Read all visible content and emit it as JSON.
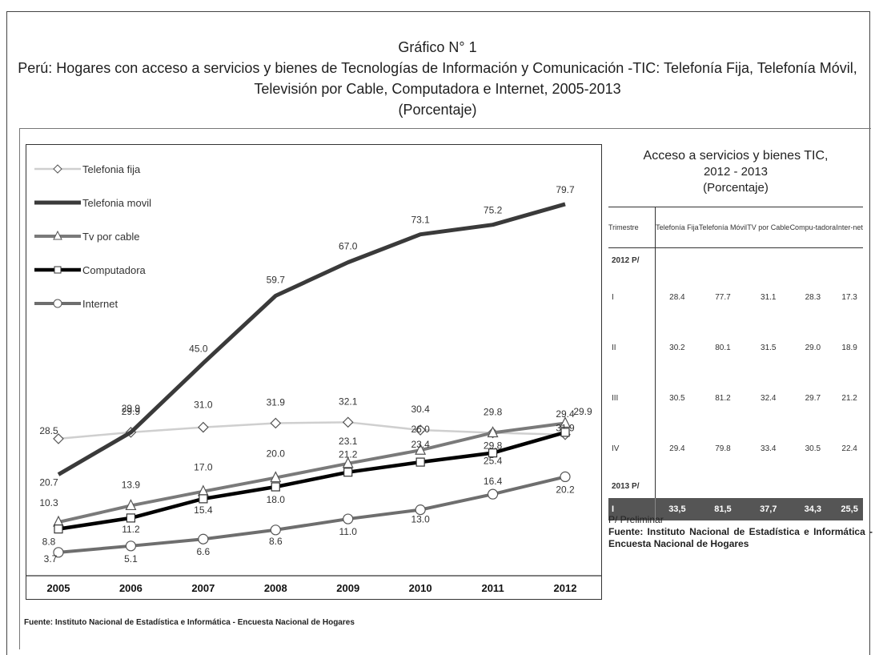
{
  "heading": {
    "line1": "Gráfico N° 1",
    "line2": "Perú: Hogares con acceso a servicios y bienes de Tecnologías de Información y Comunicación -TIC: Telefonía Fija, Telefonía Móvil,",
    "line3": "Televisión por Cable, Computadora e Internet, 2005-2013",
    "line4": "(Porcentaje)"
  },
  "chart_footnote": "Fuente: Instituto Nacional de Estadística e Informática - Encuesta Nacional de Hogares",
  "chart_data": {
    "type": "line",
    "title": "Perú: Hogares con acceso a servicios y bienes de Tecnologías de Información y Comunicación -TIC: Telefonía Fija, Telefonía Móvil, Televisión por Cable, Computadora e Internet, 2005-2013",
    "xlabel": "",
    "ylabel": "",
    "ylim": [
      0,
      90
    ],
    "grid": false,
    "legend": "top-left",
    "categories": [
      "2005",
      "2006",
      "2007",
      "2008",
      "2009",
      "2010",
      "2011",
      "2012"
    ],
    "series": [
      {
        "name": "Telefonía fija",
        "values": [
          28.5,
          29.9,
          31.0,
          31.9,
          32.1,
          30.4,
          29.8,
          29.4
        ],
        "labels": [
          "28.5",
          "29.9",
          "31.0",
          "31.9",
          "32.1",
          "30.4",
          "29.8",
          "29.4"
        ],
        "color": "#cfcfcf",
        "marker": "diamond"
      },
      {
        "name": "Telefonía móvil",
        "values": [
          20.7,
          29.9,
          45.0,
          59.7,
          67.0,
          73.1,
          75.2,
          79.7
        ],
        "labels": [
          "20.7",
          "29.9",
          "45.0",
          "59.7",
          "67.0",
          "73.1",
          "75.2",
          "79.7"
        ],
        "color": "#3a3a3a",
        "marker": "none"
      },
      {
        "name": "Tv por cable",
        "values": [
          10.3,
          13.9,
          17.0,
          20.0,
          23.1,
          26.0,
          29.8,
          31.9
        ],
        "labels": [
          "10.3",
          "13.9",
          "17.0",
          "20.0",
          "23.1",
          "26.0",
          "29.8",
          "31.9"
        ],
        "color": "#7a7a7a",
        "marker": "triangle"
      },
      {
        "name": "Computadora",
        "values": [
          8.8,
          11.2,
          15.4,
          18.0,
          21.2,
          23.4,
          25.4,
          29.9
        ],
        "labels": [
          "8.8",
          "11.2",
          "15.4",
          "18.0",
          "21.2",
          "23.4",
          "25.4",
          "29.9"
        ],
        "color": "#000000",
        "marker": "square"
      },
      {
        "name": "Internet",
        "values": [
          3.7,
          5.1,
          6.6,
          8.6,
          11.0,
          13.0,
          16.4,
          20.2
        ],
        "labels": [
          "3.7",
          "5.1",
          "6.6",
          "8.6",
          "11.0",
          "13.0",
          "16.4",
          "20.2"
        ],
        "color": "#6e6e6e",
        "marker": "circle"
      }
    ]
  },
  "legend": [
    {
      "label": "Telefonia fija"
    },
    {
      "label": "Telefonia movil"
    },
    {
      "label": "Tv por cable"
    },
    {
      "label": "Computadora"
    },
    {
      "label": "Internet"
    }
  ],
  "side": {
    "title1": "Acceso a servicios y bienes TIC,",
    "title2": "2012 - 2013",
    "title3": "(Porcentaje)",
    "headers": [
      "Trimestre",
      "Telefonía Fija",
      "Telefonía Móvil",
      "TV por Cable",
      "Compu-tadora",
      "Inter-net"
    ],
    "year2012": "2012 P/",
    "year2013": "2013 P/",
    "rows2012": [
      {
        "q": "I",
        "v": [
          "28.4",
          "77.7",
          "31.1",
          "28.3",
          "17.3"
        ]
      },
      {
        "q": "II",
        "v": [
          "30.2",
          "80.1",
          "31.5",
          "29.0",
          "18.9"
        ]
      },
      {
        "q": "III",
        "v": [
          "30.5",
          "81.2",
          "32.4",
          "29.7",
          "21.2"
        ]
      },
      {
        "q": "IV",
        "v": [
          "29.4",
          "79.8",
          "33.4",
          "30.5",
          "22.4"
        ]
      }
    ],
    "row2013": {
      "q": "I",
      "v": [
        "33,5",
        "81,5",
        "37,7",
        "34,3",
        "25,5"
      ]
    },
    "note": "P/ Preliminar",
    "source": "Fuente: Instituto Nacional de Estadística e Informática - Encuesta Nacional de Hogares"
  }
}
